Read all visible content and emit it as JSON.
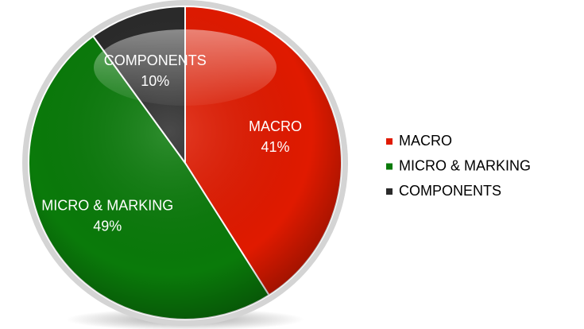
{
  "chart_data": {
    "type": "pie",
    "categories": [
      "MACRO",
      "MICRO & MARKING",
      "COMPONENTS"
    ],
    "values": [
      41,
      49,
      10
    ],
    "value_labels": [
      "41%",
      "49%",
      "10%"
    ],
    "colors": [
      "#e01a00",
      "#0a7a0a",
      "#2a2a2a"
    ],
    "legend": "right"
  }
}
